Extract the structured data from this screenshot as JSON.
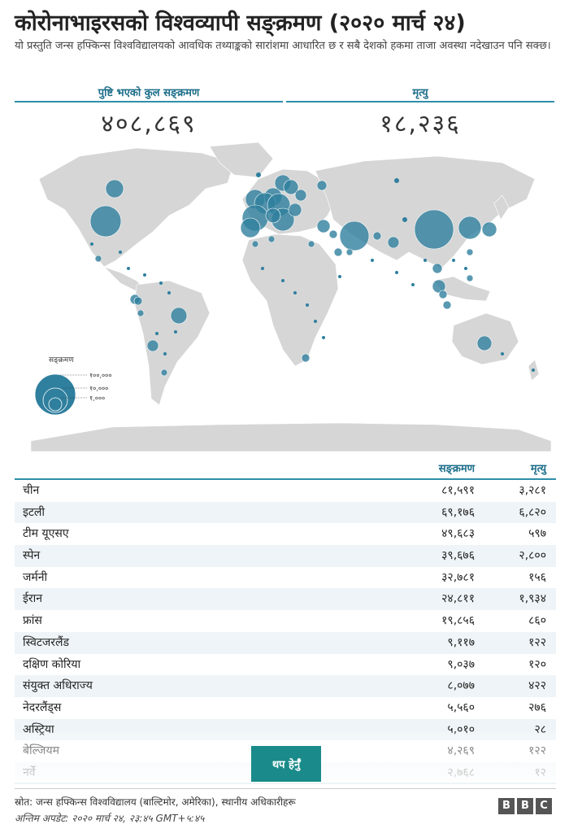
{
  "header": {
    "title": "कोरोनाभाइरसको विश्वव्यापी सङ्क्रमण (२०२० मार्च २४)",
    "subtitle": "यो प्रस्तुति जन्स हफ्किन्स विश्वविद्यालयको आवधिक तथ्याङ्कको सारांशमा आधारित छ र सबै देशको हकमा ताजा अवस्था नदेखाउन पनि सक्छ।"
  },
  "summary": {
    "cases_label": "पुष्टि भएको कुल सङ्क्रमण",
    "cases_value": "४०८,८६९",
    "deaths_label": "मृत्यु",
    "deaths_value": "१८,२३६"
  },
  "legend": {
    "title": "सङ्क्रमण",
    "items": [
      "१००,०००",
      "१०,०००",
      "१,०००"
    ]
  },
  "colors": {
    "accent": "#2f8ea9",
    "bubble": "#2f7f9e",
    "land": "#d6d6d6",
    "button": "#1a8b8a"
  },
  "table": {
    "col_cases": "सङ्क्रमण",
    "col_deaths": "मृत्यु",
    "rows": [
      {
        "country": "चीन",
        "cases": "८१,५९१",
        "deaths": "३,२८१"
      },
      {
        "country": "इटली",
        "cases": "६९,१७६",
        "deaths": "६,८२०"
      },
      {
        "country": "टीम यूएसए",
        "cases": "४९,६८३",
        "deaths": "५९७"
      },
      {
        "country": "स्पेन",
        "cases": "३९,६७६",
        "deaths": "२,८००"
      },
      {
        "country": "जर्मनी",
        "cases": "३२,७८१",
        "deaths": "१५६"
      },
      {
        "country": "ईरान",
        "cases": "२४,८११",
        "deaths": "१,९३४"
      },
      {
        "country": "फ्रांस",
        "cases": "१९,८५६",
        "deaths": "८६०"
      },
      {
        "country": "स्विटजरलैंड",
        "cases": "९,११७",
        "deaths": "१२२"
      },
      {
        "country": "दक्षिण कोरिया",
        "cases": "९,०३७",
        "deaths": "१२०"
      },
      {
        "country": "संयुक्त अधिराज्य",
        "cases": "८,०७७",
        "deaths": "४२२"
      },
      {
        "country": "नेदरलैंड्स",
        "cases": "५,५६०",
        "deaths": "२७६"
      },
      {
        "country": "अस्ट्रिया",
        "cases": "५,०१०",
        "deaths": "२८"
      },
      {
        "country": "बेल्जियम",
        "cases": "४,२६९",
        "deaths": "१२२"
      },
      {
        "country": "नर्वे",
        "cases": "२,७६८",
        "deaths": "१२"
      }
    ]
  },
  "more_button": "थप हेर्नुँ",
  "footer": {
    "source": "स्रोत: जन्स हफ्किन्स विश्वविद्यालय (बाल्टिमोर, अमेरिका), स्थानीय अधिकारीहरू",
    "updated": "अन्तिम अपडेट: २०२० मार्च २४, २३:४५ GMT+५:४५",
    "logo": [
      "B",
      "B",
      "C"
    ]
  }
}
